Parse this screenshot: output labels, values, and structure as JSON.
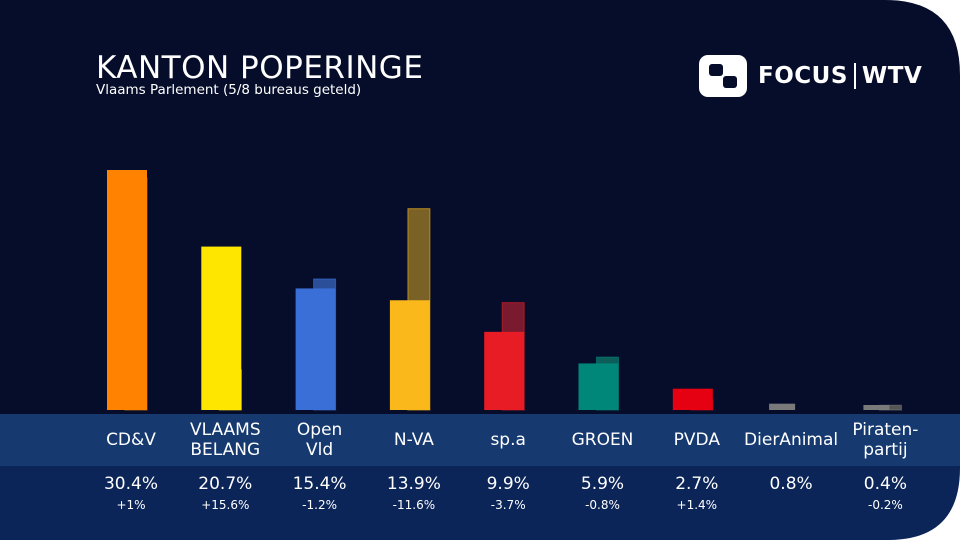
{
  "header": {
    "title": "KANTON POPERINGE",
    "subtitle": "Vlaams Parlement (5/8 bureaus geteld)"
  },
  "logo": {
    "brand_left": "FOCUS",
    "brand_right": "WTV"
  },
  "colors": {
    "background": "#060d2a",
    "label_band": "#16396f",
    "value_band": "#0b2558",
    "corner": "#ffffff"
  },
  "chart_data": {
    "type": "bar",
    "title": "KANTON POPERINGE",
    "subtitle": "Vlaams Parlement (5/8 bureaus geteld)",
    "categories": [
      {
        "lines": [
          "CD&V"
        ]
      },
      {
        "lines": [
          "VLAAMS",
          "BELANG"
        ]
      },
      {
        "lines": [
          "Open",
          "Vld"
        ]
      },
      {
        "lines": [
          "N-VA"
        ]
      },
      {
        "lines": [
          "sp.a"
        ]
      },
      {
        "lines": [
          "GROEN"
        ]
      },
      {
        "lines": [
          "PVDA"
        ]
      },
      {
        "lines": [
          "DierAnimal"
        ]
      },
      {
        "lines": [
          "Piraten-",
          "partij"
        ]
      }
    ],
    "series": [
      {
        "values": [
          30.4,
          20.7,
          15.4,
          13.9,
          9.9,
          5.9,
          2.7,
          0.8,
          0.4
        ],
        "value_labels": [
          "30.4%",
          "20.7%",
          "15.4%",
          "13.9%",
          "9.9%",
          "5.9%",
          "2.7%",
          "0.8%",
          "0.4%"
        ],
        "colors": [
          "#ff8200",
          "#ffe600",
          "#3a6fd8",
          "#fbb81a",
          "#e81c24",
          "#00877a",
          "#e50012",
          "#7a7a7a",
          "#7a7a7a"
        ]
      },
      {
        "values": [
          29.4,
          5.1,
          16.6,
          25.5,
          13.6,
          6.7,
          1.3,
          null,
          0.6
        ],
        "colors": [
          "#a85a12",
          "#a39718",
          "#2c4f9a",
          "#7a6125",
          "#7a1a2e",
          "#0d5e5a",
          "#7a1020",
          "#555555",
          "#555555"
        ]
      }
    ],
    "changes": [
      "+1%",
      "+15.6%",
      "-1.2%",
      "-11.6%",
      "-3.7%",
      "-0.8%",
      "+1.4%",
      "",
      "-0.2%"
    ],
    "ylim": [
      0,
      31
    ]
  }
}
